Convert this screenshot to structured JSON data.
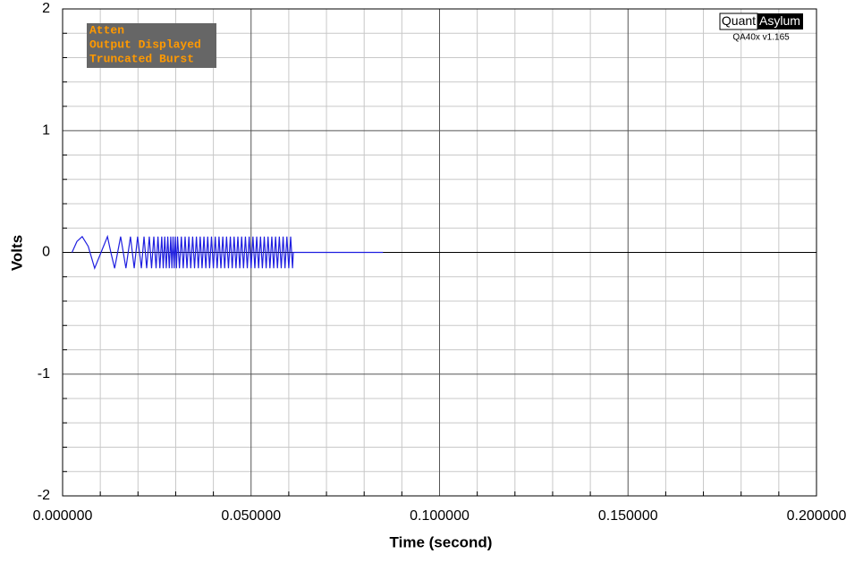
{
  "chart_data": {
    "type": "line",
    "x_label": "Time (second)",
    "y_label": "Volts",
    "annotations": [
      "Atten",
      "Output Displayed",
      "Truncated Burst"
    ],
    "logo": [
      "Quant",
      "Asylum"
    ],
    "version": "QA40x v1.165",
    "color": "#1f1fe0",
    "xlim": [
      0,
      0.2
    ],
    "ylim": [
      -2,
      2
    ],
    "xticks": [
      {
        "value": 0,
        "label": "0.000000"
      },
      {
        "value": 0.05,
        "label": "0.050000"
      },
      {
        "value": 0.1,
        "label": "0.100000"
      },
      {
        "value": 0.15,
        "label": "0.150000"
      },
      {
        "value": 0.2,
        "label": "0.200000"
      }
    ],
    "yticks": [
      -2,
      -1,
      0,
      1,
      2
    ],
    "grid": true,
    "x": [
      0.0025,
      0.0038,
      0.0052,
      0.0068,
      0.0085,
      0.0102,
      0.0119,
      0.0128,
      0.0138,
      0.0146,
      0.0154,
      0.0168,
      0.018,
      0.019,
      0.0199,
      0.0209,
      0.0216,
      0.0223,
      0.023,
      0.0236,
      0.0242,
      0.0248,
      0.0253,
      0.0258,
      0.0263,
      0.0267,
      0.0271,
      0.0275,
      0.0279,
      0.0283,
      0.0287,
      0.029,
      0.0293,
      0.0296,
      0.0299,
      0.0302,
      0.0305,
      0.031,
      0.0315,
      0.032,
      0.0325,
      0.033,
      0.0335,
      0.034,
      0.0345,
      0.035,
      0.0355,
      0.036,
      0.0365,
      0.037,
      0.0375,
      0.038,
      0.0385,
      0.039,
      0.0395,
      0.04,
      0.0405,
      0.041,
      0.0415,
      0.042,
      0.0425,
      0.043,
      0.0435,
      0.044,
      0.0445,
      0.045,
      0.0455,
      0.046,
      0.0465,
      0.047,
      0.0475,
      0.048,
      0.0485,
      0.049,
      0.0495,
      0.05,
      0.0505,
      0.051,
      0.0515,
      0.052,
      0.0525,
      0.053,
      0.0535,
      0.054,
      0.0545,
      0.055,
      0.0555,
      0.056,
      0.0565,
      0.057,
      0.0575,
      0.058,
      0.0585,
      0.059,
      0.0595,
      0.06,
      0.0605,
      0.061,
      0.0612,
      0.085
    ],
    "values": [
      0,
      0.09,
      0.13,
      0.05,
      -0.13,
      0,
      0.13,
      0,
      -0.13,
      0,
      0.13,
      -0.13,
      0.13,
      -0.13,
      0.13,
      -0.13,
      0.13,
      -0.13,
      0.13,
      -0.13,
      0.13,
      -0.13,
      0.13,
      -0.13,
      0.13,
      -0.13,
      0.13,
      -0.13,
      0.13,
      -0.13,
      0.13,
      -0.13,
      0.13,
      -0.13,
      0.13,
      -0.13,
      0.13,
      -0.13,
      0.13,
      -0.13,
      0.13,
      -0.13,
      0.13,
      -0.13,
      0.13,
      -0.13,
      0.13,
      -0.13,
      0.13,
      -0.13,
      0.13,
      -0.13,
      0.13,
      -0.13,
      0.13,
      -0.13,
      0.13,
      -0.13,
      0.13,
      -0.13,
      0.13,
      -0.13,
      0.13,
      -0.13,
      0.13,
      -0.13,
      0.13,
      -0.13,
      0.13,
      -0.13,
      0.13,
      -0.13,
      0.13,
      -0.13,
      0.13,
      -0.13,
      0.13,
      -0.13,
      0.13,
      -0.13,
      0.13,
      -0.13,
      0.13,
      -0.13,
      0.13,
      -0.13,
      0.13,
      -0.13,
      0.13,
      -0.13,
      0.13,
      -0.13,
      0.13,
      -0.13,
      0.13,
      -0.13,
      0.13,
      -0.13,
      0,
      0
    ]
  }
}
